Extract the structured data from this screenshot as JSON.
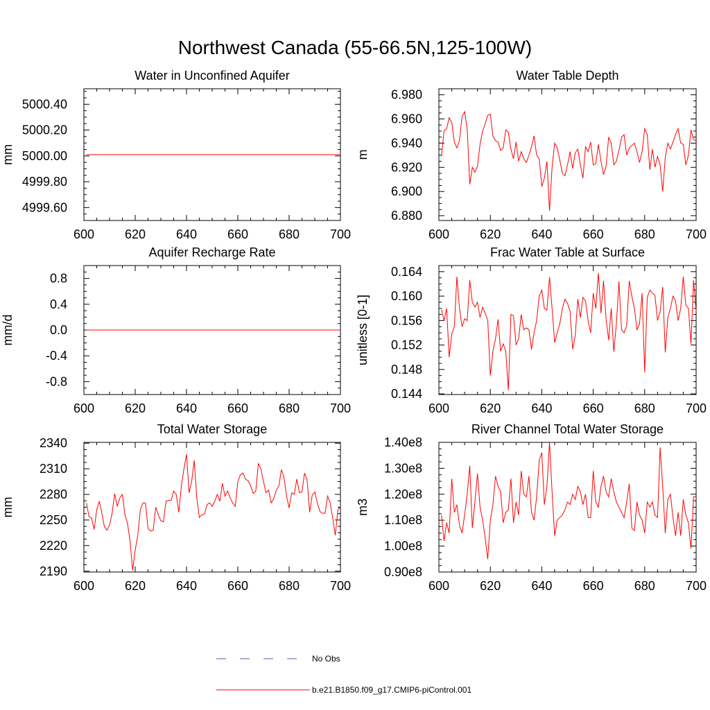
{
  "page": {
    "title": "Northwest Canada (55-66.5N,125-100W)"
  },
  "colors": {
    "model_line": "#ff0000",
    "obs_line": "#4c5fa6",
    "axis": "#000000"
  },
  "legend": {
    "items": [
      {
        "label": "No Obs",
        "color": "#4c5fa6",
        "dash": "dashed"
      },
      {
        "label": "b.e21.B1850.f09_g17.CMIP6-piControl.001",
        "color": "#ff0000",
        "dash": "solid"
      }
    ]
  },
  "chart_data": [
    {
      "type": "line",
      "title": "Water in Unconfined Aquifer",
      "ylabel": "mm",
      "xlim": [
        600,
        700
      ],
      "ylim": [
        4999.5,
        5000.52
      ],
      "xticks": [
        600,
        620,
        640,
        660,
        680,
        700
      ],
      "xtick_labels": [
        "600",
        "620",
        "640",
        "660",
        "680",
        "700"
      ],
      "yticks": [
        4999.6,
        4999.8,
        5000.0,
        5000.2,
        5000.4
      ],
      "ytick_labels": [
        "4999.60",
        "4999.80",
        "5000.00",
        "5000.20",
        "5000.40"
      ],
      "series": [
        {
          "x_start": 601,
          "x_step": 1,
          "values": [
            5000.01,
            5000.01,
            5000.01,
            5000.01,
            5000.01,
            5000.01,
            5000.01,
            5000.01,
            5000.01,
            5000.01,
            5000.01,
            5000.01,
            5000.01,
            5000.01,
            5000.01,
            5000.01,
            5000.01,
            5000.01,
            5000.01,
            5000.01,
            5000.01,
            5000.01,
            5000.01,
            5000.01,
            5000.01,
            5000.01,
            5000.01,
            5000.01,
            5000.01,
            5000.01,
            5000.01,
            5000.01,
            5000.01,
            5000.01,
            5000.01,
            5000.01,
            5000.01,
            5000.01,
            5000.01,
            5000.01,
            5000.01,
            5000.01,
            5000.01,
            5000.01,
            5000.01,
            5000.01,
            5000.01,
            5000.01,
            5000.01,
            5000.01,
            5000.01,
            5000.01,
            5000.01,
            5000.01,
            5000.01,
            5000.01,
            5000.01,
            5000.01,
            5000.01,
            5000.01,
            5000.01,
            5000.01,
            5000.01,
            5000.01,
            5000.01,
            5000.01,
            5000.01,
            5000.01,
            5000.01,
            5000.01,
            5000.01,
            5000.01,
            5000.01,
            5000.01,
            5000.01,
            5000.01,
            5000.01,
            5000.01,
            5000.01,
            5000.01,
            5000.01,
            5000.01,
            5000.01,
            5000.01,
            5000.01,
            5000.01,
            5000.01,
            5000.01,
            5000.01,
            5000.01,
            5000.01,
            5000.01,
            5000.01,
            5000.01,
            5000.01,
            5000.01,
            5000.01,
            5000.01,
            5000.01,
            5000.01
          ]
        }
      ]
    },
    {
      "type": "line",
      "title": "Water Table Depth",
      "ylabel": "m",
      "xlim": [
        600,
        700
      ],
      "ylim": [
        6.876,
        6.985
      ],
      "xticks": [
        600,
        620,
        640,
        660,
        680,
        700
      ],
      "xtick_labels": [
        "600",
        "620",
        "640",
        "660",
        "680",
        "700"
      ],
      "yticks": [
        6.88,
        6.9,
        6.92,
        6.94,
        6.96,
        6.98
      ],
      "ytick_labels": [
        "6.880",
        "6.900",
        "6.920",
        "6.940",
        "6.960",
        "6.980"
      ],
      "series": [
        {
          "x_start": 601,
          "x_step": 1,
          "values": [
            6.929,
            6.95,
            6.952,
            6.961,
            6.957,
            6.941,
            6.936,
            6.942,
            6.962,
            6.966,
            6.952,
            6.906,
            6.92,
            6.916,
            6.921,
            6.939,
            6.95,
            6.956,
            6.963,
            6.964,
            6.946,
            6.942,
            6.941,
            6.934,
            6.936,
            6.951,
            6.949,
            6.935,
            6.927,
            6.941,
            6.925,
            6.933,
            6.927,
            6.924,
            6.93,
            6.937,
            6.946,
            6.93,
            6.927,
            6.904,
            6.911,
            6.925,
            6.884,
            6.92,
            6.94,
            6.936,
            6.926,
            6.915,
            6.913,
            6.922,
            6.933,
            6.919,
            6.932,
            6.935,
            6.922,
            6.911,
            6.937,
            6.933,
            6.941,
            6.922,
            6.923,
            6.939,
            6.925,
            6.914,
            6.921,
            6.945,
            6.94,
            6.922,
            6.925,
            6.934,
            6.945,
            6.947,
            6.93,
            6.936,
            6.938,
            6.94,
            6.933,
            6.924,
            6.933,
            6.952,
            6.947,
            6.918,
            6.935,
            6.92,
            6.929,
            6.922,
            6.9,
            6.928,
            6.94,
            6.935,
            6.941,
            6.947,
            6.952,
            6.94,
            6.939,
            6.922,
            6.93,
            6.951,
            6.943,
            6.942
          ]
        }
      ]
    },
    {
      "type": "line",
      "title": "Aquifer Recharge Rate",
      "ylabel": "mm/d",
      "xlim": [
        600,
        700
      ],
      "ylim": [
        -1.0,
        1.0
      ],
      "xticks": [
        600,
        620,
        640,
        660,
        680,
        700
      ],
      "xtick_labels": [
        "600",
        "620",
        "640",
        "660",
        "680",
        "700"
      ],
      "yticks": [
        -0.8,
        -0.4,
        0.0,
        0.4,
        0.8
      ],
      "ytick_labels": [
        "-0.8",
        "-0.4",
        "0.0",
        "0.4",
        "0.8"
      ],
      "series": [
        {
          "x_start": 601,
          "x_step": 1,
          "values": [
            0,
            0,
            0,
            0,
            0,
            0,
            0,
            0,
            0,
            0,
            0,
            0,
            0,
            0,
            0,
            0,
            0,
            0,
            0,
            0,
            0,
            0,
            0,
            0,
            0,
            0,
            0,
            0,
            0,
            0,
            0,
            0,
            0,
            0,
            0,
            0,
            0,
            0,
            0,
            0,
            0,
            0,
            0,
            0,
            0,
            0,
            0,
            0,
            0,
            0,
            0,
            0,
            0,
            0,
            0,
            0,
            0,
            0,
            0,
            0,
            0,
            0,
            0,
            0,
            0,
            0,
            0,
            0,
            0,
            0,
            0,
            0,
            0,
            0,
            0,
            0,
            0,
            0,
            0,
            0,
            0,
            0,
            0,
            0,
            0,
            0,
            0,
            0,
            0,
            0,
            0,
            0,
            0,
            0,
            0,
            0,
            0,
            0,
            0,
            0
          ]
        }
      ]
    },
    {
      "type": "line",
      "title": "Frac Water Table at Surface",
      "ylabel": "unitless [0-1]",
      "xlim": [
        600,
        700
      ],
      "ylim": [
        0.1439,
        0.165
      ],
      "xticks": [
        600,
        620,
        640,
        660,
        680,
        700
      ],
      "xtick_labels": [
        "600",
        "620",
        "640",
        "660",
        "680",
        "700"
      ],
      "yticks": [
        0.144,
        0.148,
        0.152,
        0.156,
        0.16,
        0.164
      ],
      "ytick_labels": [
        "0.144",
        "0.148",
        "0.152",
        "0.156",
        "0.160",
        "0.164"
      ],
      "series": [
        {
          "x_start": 601,
          "x_step": 1,
          "values": [
            0.1578,
            0.156,
            0.158,
            0.15,
            0.1538,
            0.155,
            0.1632,
            0.158,
            0.155,
            0.1563,
            0.156,
            0.1626,
            0.159,
            0.1582,
            0.159,
            0.1565,
            0.1582,
            0.1572,
            0.156,
            0.147,
            0.151,
            0.153,
            0.1562,
            0.151,
            0.1522,
            0.151,
            0.1446,
            0.157,
            0.1568,
            0.152,
            0.153,
            0.157,
            0.1545,
            0.1548,
            0.1545,
            0.1513,
            0.154,
            0.156,
            0.16,
            0.161,
            0.158,
            0.1577,
            0.1631,
            0.158,
            0.1524,
            0.154,
            0.1555,
            0.158,
            0.1595,
            0.1588,
            0.1575,
            0.1513,
            0.1535,
            0.1595,
            0.1565,
            0.1598,
            0.1592,
            0.156,
            0.154,
            0.1605,
            0.158,
            0.1638,
            0.1572,
            0.1625,
            0.1562,
            0.1528,
            0.158,
            0.1509,
            0.1555,
            0.1624,
            0.1545,
            0.154,
            0.1552,
            0.1625,
            0.16,
            0.158,
            0.1545,
            0.1555,
            0.1605,
            0.1475,
            0.1598,
            0.161,
            0.1605,
            0.1601,
            0.156,
            0.1575,
            0.1615,
            0.1508,
            0.1565,
            0.158,
            0.16,
            0.1592,
            0.156,
            0.158,
            0.1632,
            0.1585,
            0.158,
            0.1522,
            0.1626,
            0.1575
          ]
        }
      ]
    },
    {
      "type": "line",
      "title": "Total Water Storage",
      "ylabel": "mm",
      "xlim": [
        600,
        700
      ],
      "ylim": [
        2189,
        2341
      ],
      "xticks": [
        600,
        620,
        640,
        660,
        680,
        700
      ],
      "xtick_labels": [
        "600",
        "620",
        "640",
        "660",
        "680",
        "700"
      ],
      "yticks": [
        2190,
        2220,
        2250,
        2280,
        2310,
        2340
      ],
      "ytick_labels": [
        "2190",
        "2220",
        "2250",
        "2280",
        "2310",
        "2340"
      ],
      "series": [
        {
          "x_start": 601,
          "x_step": 1,
          "values": [
            2270,
            2254,
            2252,
            2239,
            2262,
            2272,
            2258,
            2242,
            2238,
            2244,
            2258,
            2281,
            2266,
            2276,
            2280,
            2256,
            2246,
            2225,
            2191,
            2215,
            2232,
            2262,
            2270,
            2270,
            2240,
            2237,
            2238,
            2265,
            2256,
            2249,
            2248,
            2272,
            2273,
            2273,
            2284,
            2280,
            2259,
            2290,
            2310,
            2327,
            2282,
            2295,
            2320,
            2276,
            2253,
            2256,
            2257,
            2268,
            2270,
            2266,
            2272,
            2280,
            2272,
            2293,
            2278,
            2284,
            2276,
            2270,
            2266,
            2295,
            2303,
            2305,
            2298,
            2296,
            2290,
            2281,
            2284,
            2316,
            2310,
            2295,
            2282,
            2285,
            2270,
            2275,
            2285,
            2290,
            2309,
            2300,
            2278,
            2264,
            2282,
            2280,
            2298,
            2282,
            2283,
            2305,
            2297,
            2259,
            2279,
            2283,
            2270,
            2260,
            2258,
            2258,
            2278,
            2270,
            2252,
            2232,
            2262,
            2265
          ]
        }
      ]
    },
    {
      "type": "line",
      "title": "River Channel Total Water Storage",
      "ylabel": "m3",
      "xlim": [
        600,
        700
      ],
      "ylim": [
        90000000.0,
        140000000.0
      ],
      "xticks": [
        600,
        620,
        640,
        660,
        680,
        700
      ],
      "xtick_labels": [
        "600",
        "620",
        "640",
        "660",
        "680",
        "700"
      ],
      "yticks": [
        90000000.0,
        100000000.0,
        110000000.0,
        120000000.0,
        130000000.0,
        140000000.0
      ],
      "ytick_labels": [
        "0.90e8",
        "1.00e8",
        "1.10e8",
        "1.20e8",
        "1.30e8",
        "1.40e8"
      ],
      "series": [
        {
          "x_start": 601,
          "x_step": 1,
          "values": [
            112000000.0,
            102000000.0,
            109000000.0,
            105000000.0,
            126000000.0,
            113000000.0,
            116000000.0,
            108000000.0,
            105000000.0,
            112000000.0,
            120000000.0,
            131000000.0,
            107000000.0,
            117000000.0,
            128000000.0,
            115000000.0,
            110000000.0,
            103000000.0,
            95000000.0,
            110000000.0,
            116000000.0,
            127000000.0,
            123000000.0,
            121000000.0,
            109000000.0,
            113000000.0,
            114000000.0,
            126000000.0,
            109000000.0,
            117000000.0,
            112000000.0,
            129000000.0,
            120000000.0,
            119000000.0,
            127000000.0,
            113000000.0,
            110000000.0,
            119000000.0,
            133000000.0,
            136000000.0,
            116000000.0,
            123000000.0,
            140000000.0,
            121000000.0,
            104000000.0,
            110000000.0,
            111000000.0,
            112000000.0,
            114000000.0,
            117000000.0,
            116000000.0,
            120000000.0,
            118000000.0,
            123000000.0,
            121000000.0,
            116000000.0,
            120000000.0,
            111000000.0,
            111000000.0,
            129000000.0,
            117000000.0,
            115000000.0,
            123000000.0,
            127000000.0,
            121000000.0,
            119000000.0,
            126000000.0,
            121000000.0,
            117000000.0,
            115000000.0,
            113000000.0,
            111000000.0,
            117000000.0,
            124000000.0,
            107000000.0,
            106000000.0,
            117000000.0,
            112000000.0,
            110000000.0,
            105000000.0,
            117000000.0,
            115000000.0,
            117000000.0,
            112000000.0,
            111000000.0,
            138000000.0,
            123000000.0,
            105000000.0,
            118000000.0,
            120000000.0,
            111000000.0,
            104000000.0,
            113000000.0,
            104000000.0,
            118000000.0,
            112000000.0,
            109000000.0,
            99000000.0,
            119000000.0,
            119000000.0
          ]
        }
      ]
    }
  ]
}
